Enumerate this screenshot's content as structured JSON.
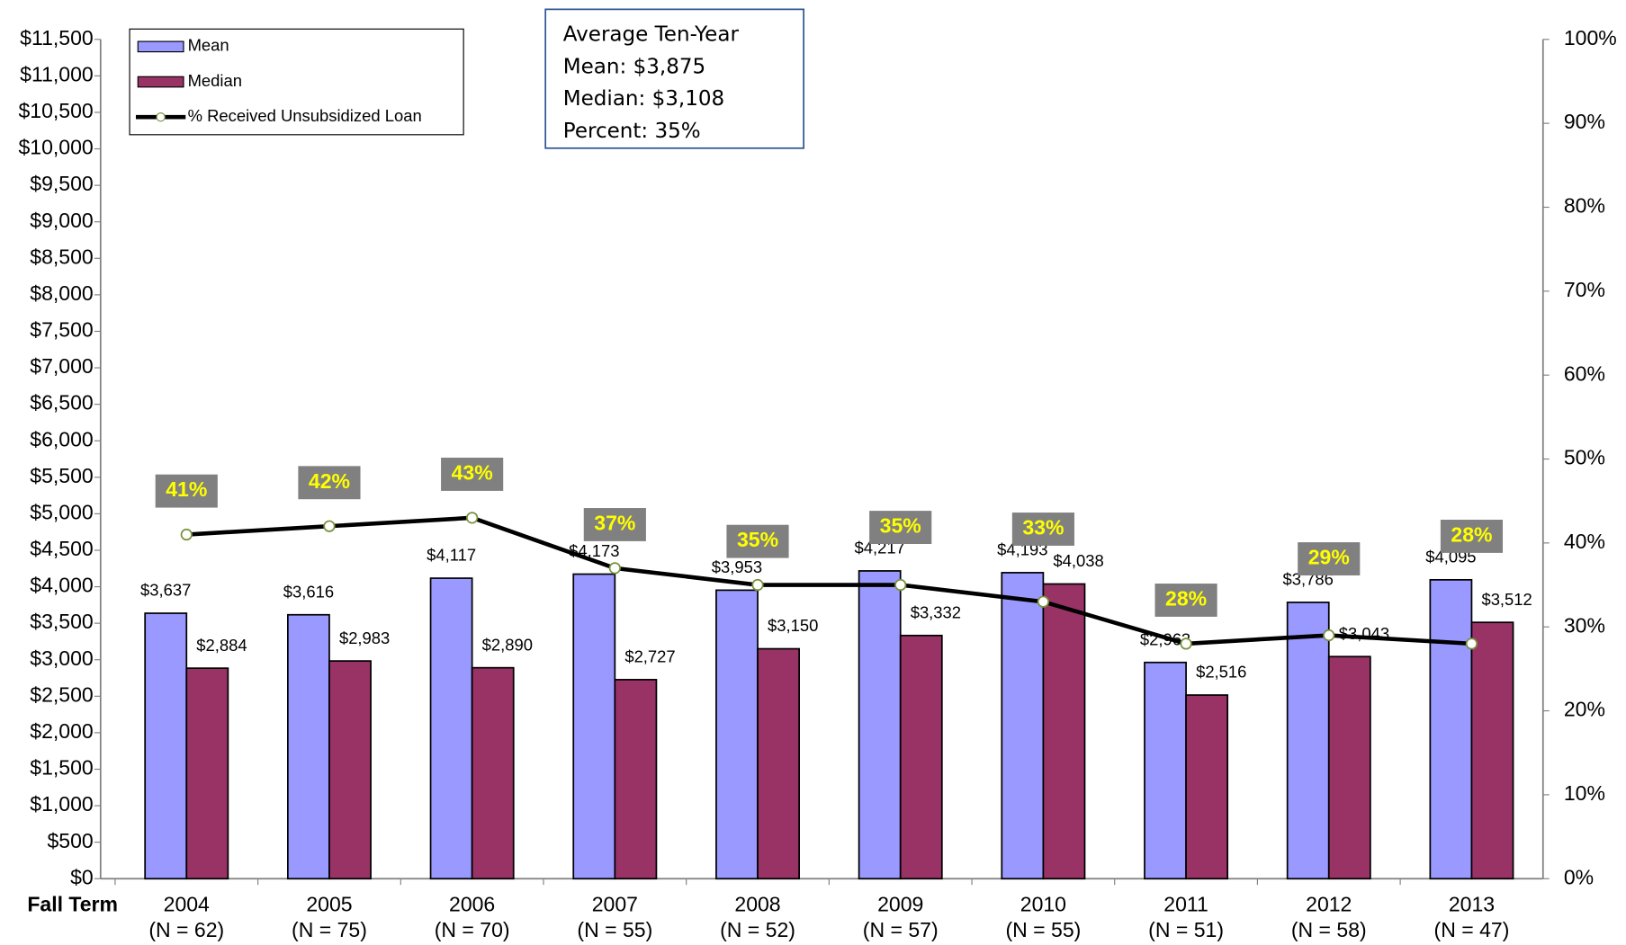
{
  "chart_data": {
    "type": "bar_line",
    "x_label": "Fall Term",
    "categories": [
      "2004",
      "2005",
      "2006",
      "2007",
      "2008",
      "2009",
      "2010",
      "2011",
      "2012",
      "2013"
    ],
    "category_sublabels": [
      "(N = 62)",
      "(N = 75)",
      "(N = 70)",
      "(N = 55)",
      "(N = 52)",
      "(N = 57)",
      "(N = 55)",
      "(N = 51)",
      "(N = 58)",
      "(N = 47)"
    ],
    "series": [
      {
        "name": "Mean",
        "color": "#9999ff",
        "values": [
          3637,
          3616,
          4117,
          4173,
          3953,
          4217,
          4193,
          2963,
          3786,
          4095
        ],
        "value_labels": [
          "$3,637",
          "$3,616",
          "$4,117",
          "$4,173",
          "$3,953",
          "$4,217",
          "$4,193",
          "$2,963",
          "$3,786",
          "$4,095"
        ]
      },
      {
        "name": "Median",
        "color": "#993366",
        "values": [
          2884,
          2983,
          2890,
          2727,
          3150,
          3332,
          4038,
          2516,
          3043,
          3512
        ],
        "value_labels": [
          "$2,884",
          "$2,983",
          "$2,890",
          "$2,727",
          "$3,150",
          "$3,332",
          "$4,038",
          "$2,516",
          "$3,043",
          "$3,512"
        ]
      },
      {
        "name": "% Received Unsubsidized Loan",
        "color": "#000000",
        "axis": "y2",
        "values": [
          41,
          42,
          43,
          37,
          35,
          35,
          33,
          28,
          29,
          28
        ],
        "value_labels": [
          "41%",
          "42%",
          "43%",
          "37%",
          "35%",
          "35%",
          "33%",
          "28%",
          "29%",
          "28%"
        ]
      }
    ],
    "ylim": [
      0,
      11500
    ],
    "yticks": [
      {
        "value": 0,
        "label": "$0"
      },
      {
        "value": 500,
        "label": "$500"
      },
      {
        "value": 1000,
        "label": "$1,000"
      },
      {
        "value": 1500,
        "label": "$1,500"
      },
      {
        "value": 2000,
        "label": "$2,000"
      },
      {
        "value": 2500,
        "label": "$2,500"
      },
      {
        "value": 3000,
        "label": "$3,000"
      },
      {
        "value": 3500,
        "label": "$3,500"
      },
      {
        "value": 4000,
        "label": "$4,000"
      },
      {
        "value": 4500,
        "label": "$4,500"
      },
      {
        "value": 5000,
        "label": "$5,000"
      },
      {
        "value": 5500,
        "label": "$5,500"
      },
      {
        "value": 6000,
        "label": "$6,000"
      },
      {
        "value": 6500,
        "label": "$6,500"
      },
      {
        "value": 7000,
        "label": "$7,000"
      },
      {
        "value": 7500,
        "label": "$7,500"
      },
      {
        "value": 8000,
        "label": "$8,000"
      },
      {
        "value": 8500,
        "label": "$8,500"
      },
      {
        "value": 9000,
        "label": "$9,000"
      },
      {
        "value": 9500,
        "label": "$9,500"
      },
      {
        "value": 10000,
        "label": "$10,000"
      },
      {
        "value": 10500,
        "label": "$10,500"
      },
      {
        "value": 11000,
        "label": "$11,000"
      },
      {
        "value": 11500,
        "label": "$11,500"
      }
    ],
    "y2lim": [
      0,
      100
    ],
    "y2ticks": [
      {
        "value": 0,
        "label": "0%"
      },
      {
        "value": 10,
        "label": "10%"
      },
      {
        "value": 20,
        "label": "20%"
      },
      {
        "value": 30,
        "label": "30%"
      },
      {
        "value": 40,
        "label": "40%"
      },
      {
        "value": 50,
        "label": "50%"
      },
      {
        "value": 60,
        "label": "60%"
      },
      {
        "value": 70,
        "label": "70%"
      },
      {
        "value": 80,
        "label": "80%"
      },
      {
        "value": 90,
        "label": "90%"
      },
      {
        "value": 100,
        "label": "100%"
      }
    ],
    "annotation": [
      "Average Ten-Year",
      "Mean:  $3,875",
      "Median:  $3,108",
      "Percent: 35%"
    ],
    "legend": "top-left"
  }
}
